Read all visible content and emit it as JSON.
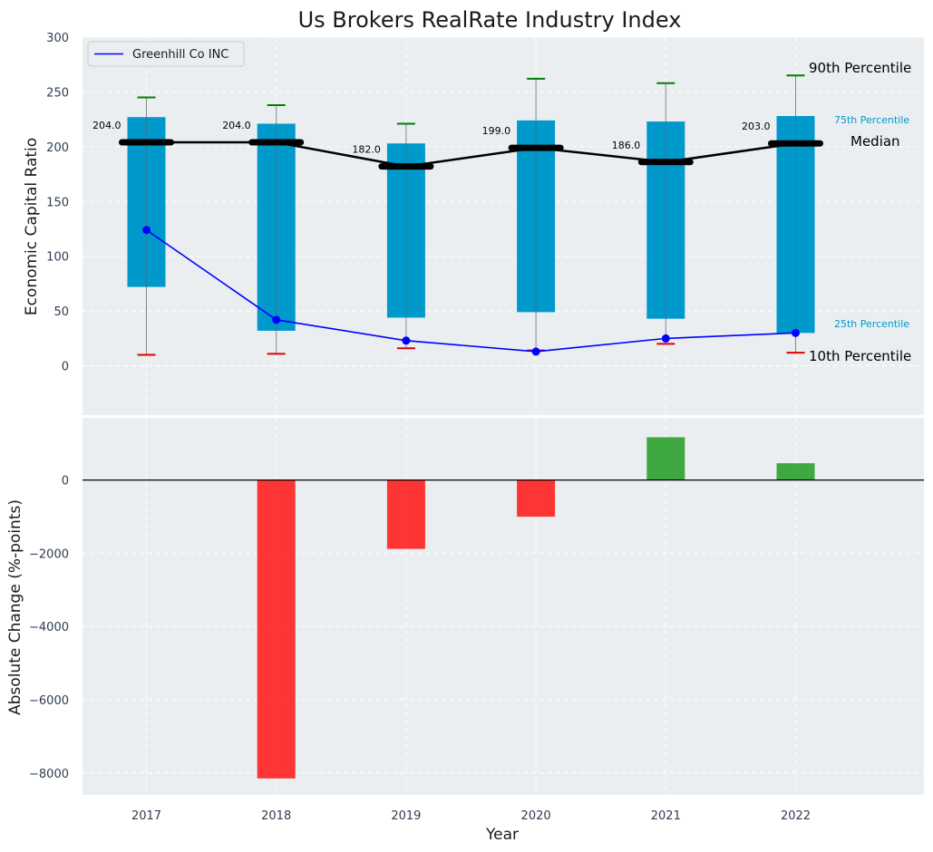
{
  "chart_data": [
    {
      "type": "box",
      "title": "Us Brokers RealRate Industry Index",
      "xlabel": "",
      "ylabel": "Economic Capital Ratio",
      "categories": [
        "2017",
        "2018",
        "2019",
        "2020",
        "2021",
        "2022"
      ],
      "ylim": [
        -45,
        300
      ],
      "yticks": [
        0,
        50,
        100,
        150,
        200,
        250,
        300
      ],
      "grid": true,
      "legend_position": "top-left",
      "p10": [
        10,
        11,
        16,
        14,
        20,
        12
      ],
      "p25": [
        72,
        32,
        44,
        49,
        43,
        30
      ],
      "median": [
        204.0,
        204.0,
        182.0,
        199.0,
        186.0,
        203.0
      ],
      "p75": [
        227,
        221,
        203,
        224,
        223,
        228
      ],
      "p90": [
        245,
        238,
        221,
        262,
        258,
        265
      ],
      "median_labels": [
        "204.0",
        "204.0",
        "182.0",
        "199.0",
        "186.0",
        "203.0"
      ],
      "series": [
        {
          "name": "Greenhill Co INC",
          "color": "#0000ff",
          "values": [
            124,
            42,
            23,
            13,
            25,
            30
          ]
        }
      ],
      "annotations": {
        "p90": "90th Percentile",
        "p75": "75th Percentile",
        "median": "Median",
        "p25": "25th Percentile",
        "p10": "10th Percentile"
      },
      "colors": {
        "box": "#0099cc",
        "p90_cap": "#008000",
        "p10_cap": "#e00000",
        "median": "#000000"
      }
    },
    {
      "type": "bar",
      "xlabel": "Year",
      "ylabel": "Absolute Change (%-points)",
      "categories": [
        "2017",
        "2018",
        "2019",
        "2020",
        "2021",
        "2022"
      ],
      "values": [
        0,
        -8150,
        -1880,
        -1000,
        1170,
        460
      ],
      "ylim": [
        -8600,
        1700
      ],
      "yticks": [
        0,
        -2000,
        -4000,
        -6000,
        -8000
      ],
      "grid": true,
      "colors": {
        "positive": "#2ca02c",
        "negative": "#ff2020"
      }
    }
  ]
}
